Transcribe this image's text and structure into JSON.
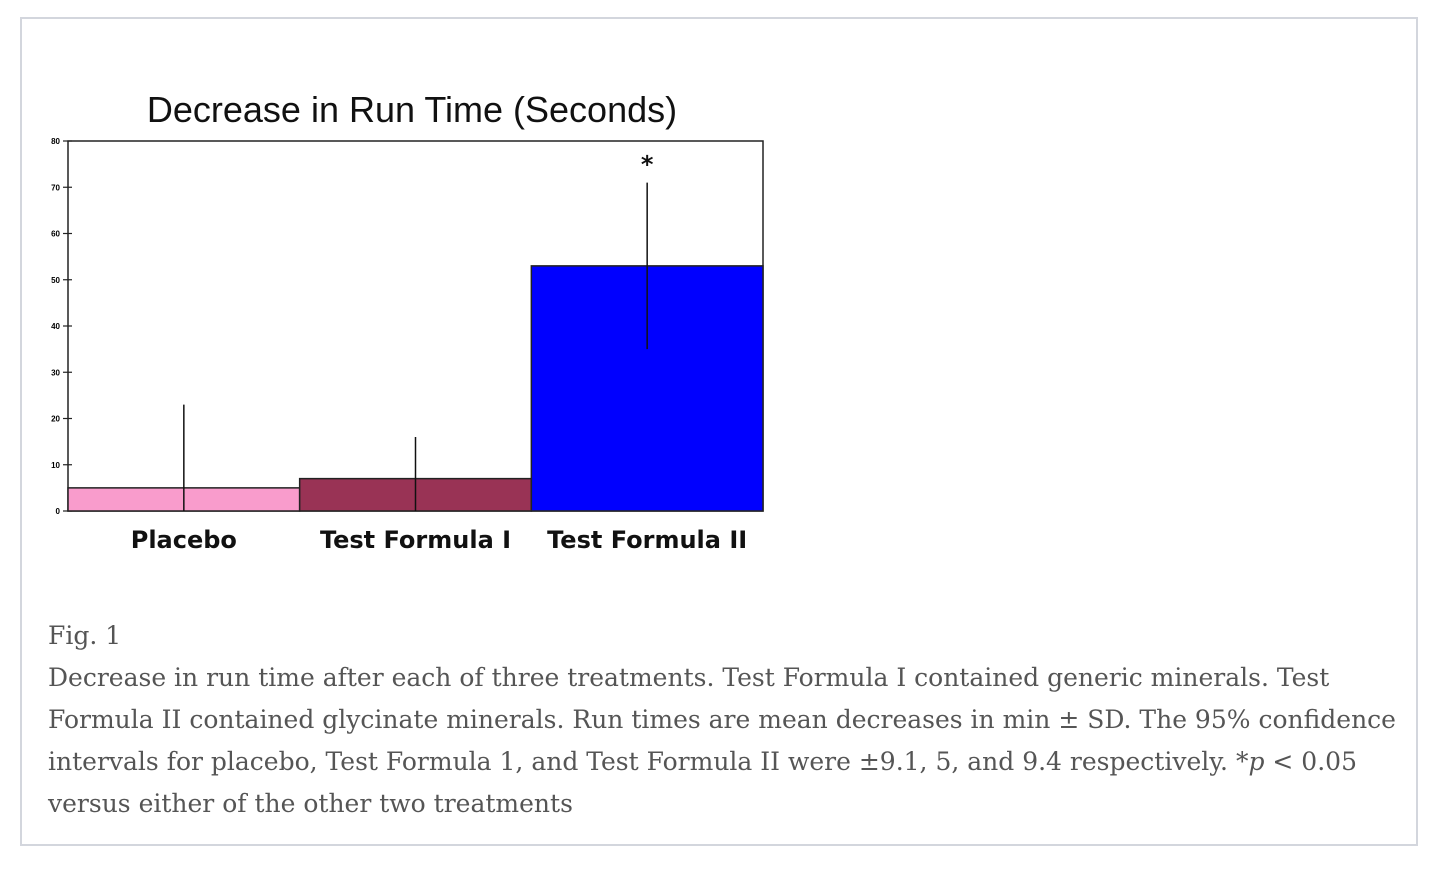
{
  "figure": {
    "label": "Fig. 1",
    "caption_before_p": "Decrease in run time after each of three treatments. Test Formula I contained generic minerals. Test Formula II contained glycinate minerals. Run times are mean decreases in min ± SD. The 95% confidence intervals for placebo, Test Formula 1, and Test Formula II were ±9.1, 5, and 9.4 respectively. *",
    "caption_p": "p",
    "caption_after_p": " < 0.05 versus either of the other two treatments"
  },
  "chart_data": {
    "type": "bar",
    "title": "Decrease in Run Time (Seconds)",
    "categories": [
      "Placebo",
      "Test Formula I",
      "Test Formula II"
    ],
    "values": [
      5,
      7,
      53
    ],
    "error": [
      18,
      9,
      18
    ],
    "colors": [
      "#f99ccc",
      "#993355",
      "#0000ff"
    ],
    "ylim": [
      0,
      80
    ],
    "yticks": [
      0,
      10,
      20,
      30,
      40,
      50,
      60,
      70,
      80
    ],
    "annotations": [
      {
        "category": "Test Formula II",
        "text": "*"
      }
    ],
    "grid": false,
    "xlabel": "",
    "ylabel": ""
  }
}
